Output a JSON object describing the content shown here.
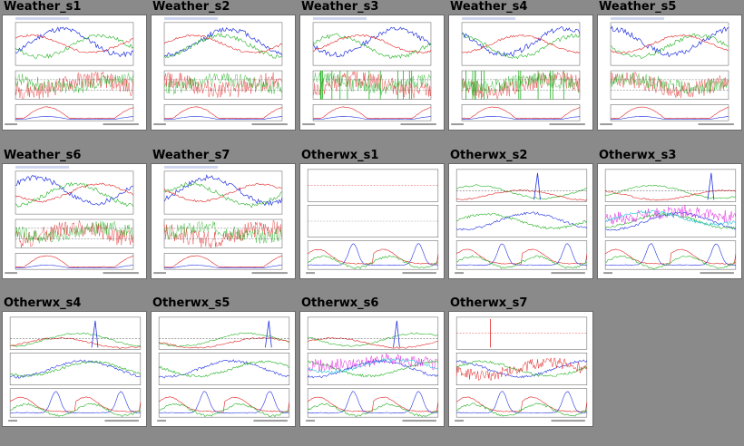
{
  "thumbnails": [
    {
      "title": "Weather_s1",
      "kind": "weather",
      "seed": 11
    },
    {
      "title": "Weather_s2",
      "kind": "weather",
      "seed": 12
    },
    {
      "title": "Weather_s3",
      "kind": "weather",
      "seed": 13
    },
    {
      "title": "Weather_s4",
      "kind": "weather",
      "seed": 14
    },
    {
      "title": "Weather_s5",
      "kind": "weather",
      "seed": 15
    },
    {
      "title": "Weather_s6",
      "kind": "weather",
      "seed": 16
    },
    {
      "title": "Weather_s7",
      "kind": "weather",
      "seed": 17
    },
    {
      "title": "Otherwx_s1",
      "kind": "otherwx",
      "seed": 21
    },
    {
      "title": "Otherwx_s2",
      "kind": "otherwx",
      "seed": 22
    },
    {
      "title": "Otherwx_s3",
      "kind": "otherwx",
      "seed": 23
    },
    {
      "title": "Otherwx_s4",
      "kind": "otherwx",
      "seed": 24
    },
    {
      "title": "Otherwx_s5",
      "kind": "otherwx",
      "seed": 25
    },
    {
      "title": "Otherwx_s6",
      "kind": "otherwx",
      "seed": 26
    },
    {
      "title": "Otherwx_s7",
      "kind": "otherwx",
      "seed": 27
    }
  ],
  "colors": {
    "background": "#8a8a8a",
    "series_red": "#e02020",
    "series_green": "#20b020",
    "series_blue": "#2030e0",
    "series_magenta": "#e020e0",
    "series_cyan": "#20c0e0",
    "series_black": "#202020"
  }
}
